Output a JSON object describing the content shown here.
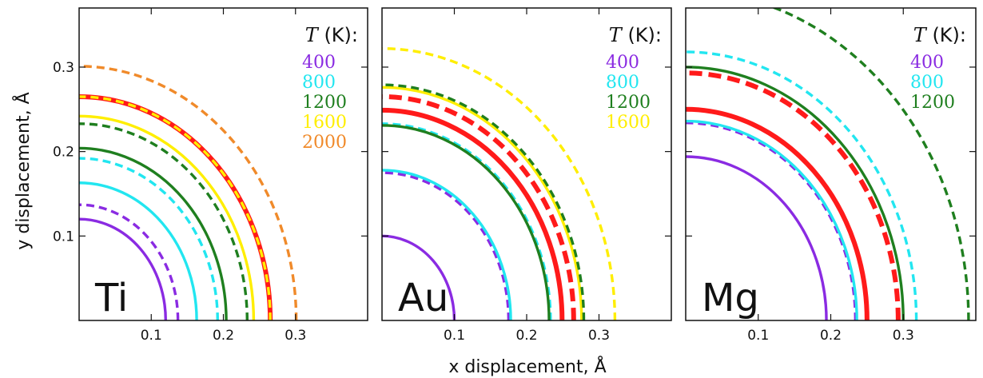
{
  "chart_data": {
    "type": "line",
    "xlabel": "x displacement, Å",
    "ylabel": "y displacement, Å",
    "legend_title_var": "T",
    "legend_title_unit": " (K):",
    "legend_position": "top-right",
    "xlim": [
      0,
      0.4
    ],
    "ylim": [
      0,
      0.37
    ],
    "x_ticks": [
      0.1,
      0.2,
      0.3
    ],
    "x_tick_labels": [
      "0.1",
      "0.2",
      "0.3"
    ],
    "y_ticks": [
      0.1,
      0.2,
      0.3
    ],
    "y_tick_labels": [
      "0.1",
      "0.2",
      "0.3"
    ],
    "temperature_colors": {
      "400": "#8a2be2",
      "800": "#22e6f0",
      "1200": "#1f7f1f",
      "1600": "#ffee00",
      "2000": "#f08a2a",
      "reference": "#ff1a1a"
    },
    "panels": [
      {
        "label": "Ti",
        "legend": [
          "400",
          "800",
          "1200",
          "1600",
          "2000"
        ],
        "arcs": [
          {
            "temp": "400",
            "style": "solid",
            "radius": 0.12
          },
          {
            "temp": "400",
            "style": "dashed",
            "radius": 0.137
          },
          {
            "temp": "800",
            "style": "solid",
            "radius": 0.163
          },
          {
            "temp": "800",
            "style": "dashed",
            "radius": 0.192
          },
          {
            "temp": "1200",
            "style": "solid",
            "radius": 0.204
          },
          {
            "temp": "1200",
            "style": "dashed",
            "radius": 0.233
          },
          {
            "temp": "1600",
            "style": "solid",
            "radius": 0.242
          },
          {
            "temp": "reference",
            "style": "solid",
            "radius": 0.265,
            "thick": true
          },
          {
            "temp": "1600",
            "style": "dashed",
            "radius": 0.265
          },
          {
            "temp": "2000",
            "style": "dashed",
            "radius": 0.301
          }
        ]
      },
      {
        "label": "Au",
        "legend": [
          "400",
          "800",
          "1200",
          "1600"
        ],
        "arcs": [
          {
            "temp": "400",
            "style": "solid",
            "radius": 0.1
          },
          {
            "temp": "400",
            "style": "dashed",
            "radius": 0.175
          },
          {
            "temp": "800",
            "style": "solid",
            "radius": 0.178
          },
          {
            "temp": "800",
            "style": "dashed",
            "radius": 0.233
          },
          {
            "temp": "1200",
            "style": "solid",
            "radius": 0.231
          },
          {
            "temp": "reference",
            "style": "solid",
            "radius": 0.249,
            "thick": true
          },
          {
            "temp": "reference",
            "style": "dashed",
            "radius": 0.265,
            "thick": true
          },
          {
            "temp": "1600",
            "style": "solid",
            "radius": 0.276
          },
          {
            "temp": "1200",
            "style": "dashed",
            "radius": 0.279
          },
          {
            "temp": "1600",
            "style": "dashed",
            "radius": 0.322
          }
        ]
      },
      {
        "label": "Mg",
        "legend": [
          "400",
          "800",
          "1200"
        ],
        "arcs": [
          {
            "temp": "400",
            "style": "solid",
            "radius": 0.194
          },
          {
            "temp": "400",
            "style": "dashed",
            "radius": 0.234
          },
          {
            "temp": "800",
            "style": "solid",
            "radius": 0.236
          },
          {
            "temp": "reference",
            "style": "solid",
            "radius": 0.25,
            "thick": true
          },
          {
            "temp": "reference",
            "style": "dashed",
            "radius": 0.293,
            "thick": true
          },
          {
            "temp": "1200",
            "style": "solid",
            "radius": 0.3
          },
          {
            "temp": "800",
            "style": "dashed",
            "radius": 0.318
          },
          {
            "temp": "1200",
            "style": "dashed",
            "radius": 0.39
          }
        ]
      }
    ]
  }
}
